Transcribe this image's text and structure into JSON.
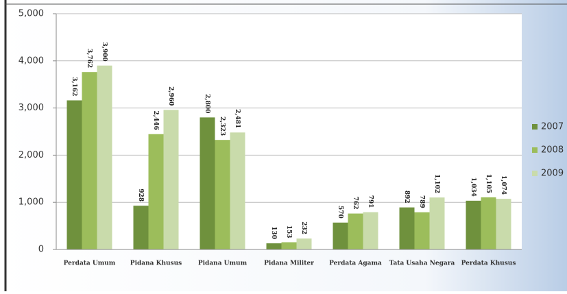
{
  "chart_data": {
    "type": "bar",
    "categories": [
      "Perdata Umum",
      "Pidana Khusus",
      "Pidana Umum",
      "Pidana Militer",
      "Perdata Agama",
      "Tata Usaha Negara",
      "Perdata Khusus"
    ],
    "series": [
      {
        "name": "2007",
        "color": "#6f913d",
        "values": [
          3162,
          928,
          2800,
          130,
          570,
          892,
          1034
        ],
        "value_labels": [
          "3,162",
          "928",
          "2,800",
          "130",
          "570",
          "892",
          "1,034"
        ]
      },
      {
        "name": "2008",
        "color": "#9cbd5b",
        "values": [
          3762,
          2446,
          2323,
          153,
          762,
          789,
          1105
        ],
        "value_labels": [
          "3,762",
          "2,446",
          "2,323",
          "153",
          "762",
          "789",
          "1,105"
        ]
      },
      {
        "name": "2009",
        "color": "#c9dbab",
        "values": [
          3900,
          2960,
          2481,
          232,
          791,
          1102,
          1074
        ],
        "value_labels": [
          "3,900",
          "2,960",
          "2,481",
          "232",
          "791",
          "1,102",
          "1,074"
        ]
      }
    ],
    "ylim": [
      0,
      5000
    ],
    "yticks": [
      0,
      {
        "value": 1000,
        "label": "1,000"
      },
      {
        "value": 2000,
        "label": "2,000"
      },
      {
        "value": 3000,
        "label": "3,000"
      },
      {
        "value": 4000,
        "label": "4,000"
      },
      {
        "value": 5000,
        "label": "5,000"
      }
    ],
    "grid": true,
    "legend": "right"
  }
}
